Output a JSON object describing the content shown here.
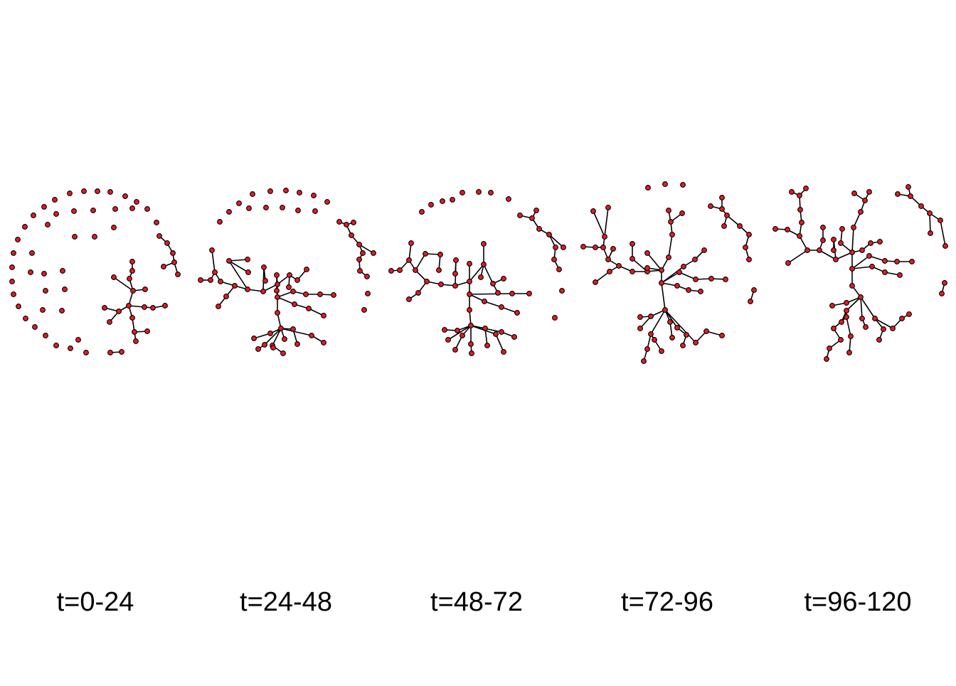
{
  "panels": [
    {
      "label": "t=0-24"
    },
    {
      "label": "t=24-48"
    },
    {
      "label": "t=48-72"
    },
    {
      "label": "t=72-96"
    },
    {
      "label": "t=96-120"
    }
  ],
  "style": {
    "node_fill": "#e01c24",
    "node_stroke": "#000000",
    "edge_color": "#000000",
    "background": "#ffffff"
  }
}
